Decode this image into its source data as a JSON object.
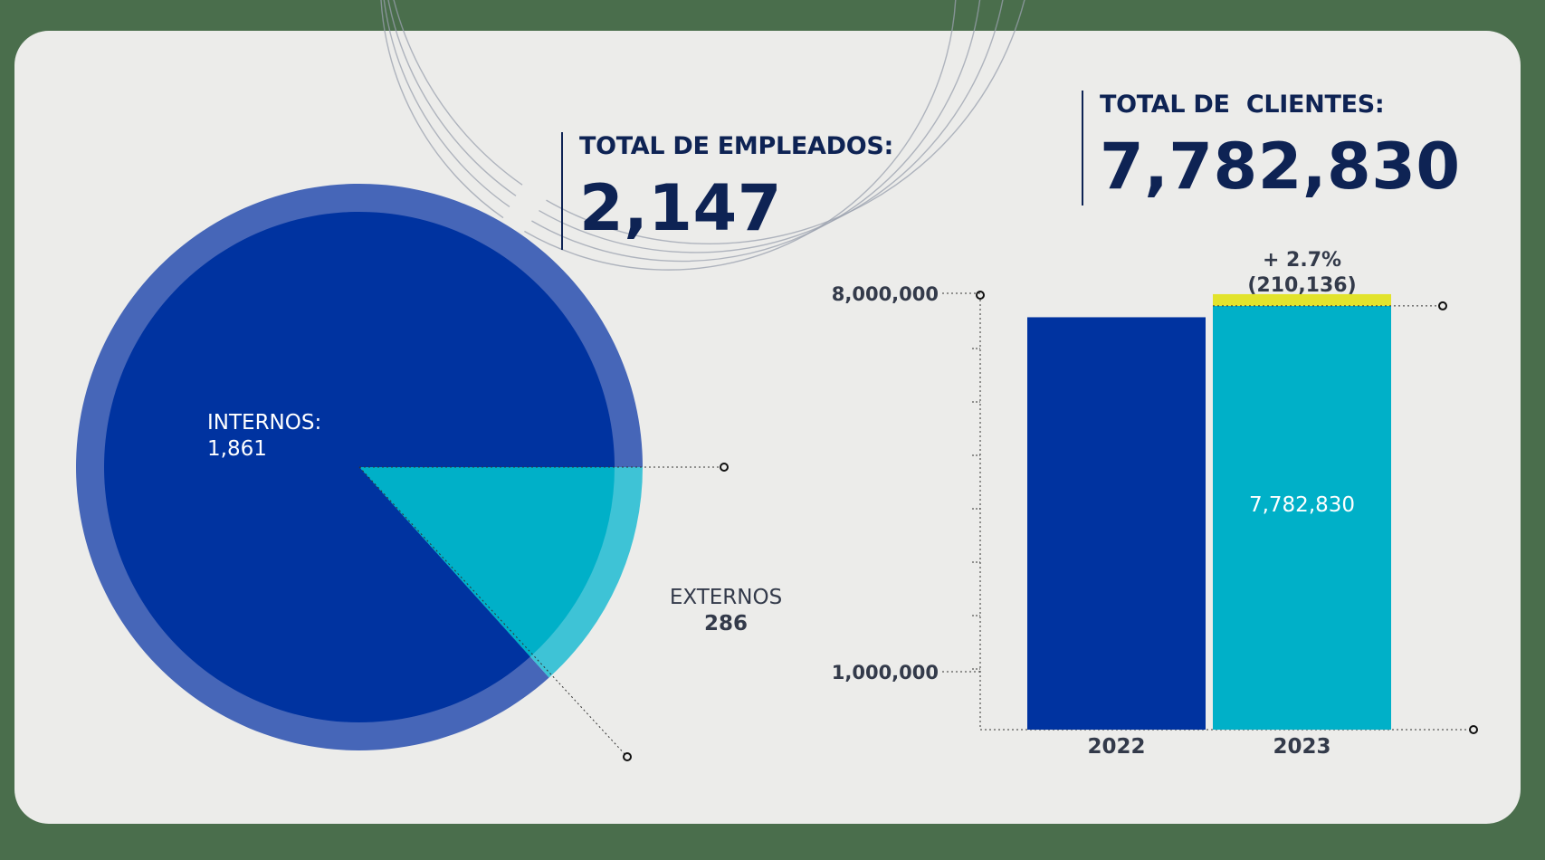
{
  "employees": {
    "label": "TOTAL DE EMPLEADOS:",
    "value": "2,147"
  },
  "clients": {
    "label": "TOTAL DE  CLIENTES:",
    "value": "7,782,830"
  },
  "colors": {
    "navy": "#0e2354",
    "internos": "#0033a0",
    "internos_ring": "#4666b8",
    "externos": "#00b0c8",
    "externos_ring": "#3ec3d6",
    "bar_2022": "#0033a0",
    "bar_2023": "#00b0c8",
    "growth": "#e2e32c",
    "guide": "#333333",
    "ring_line": "#9aa0ad"
  },
  "chart_data": [
    {
      "type": "pie",
      "slices": [
        {
          "label": "INTERNOS:",
          "value": 1861,
          "value_text": "1,861"
        },
        {
          "label": "EXTERNOS",
          "value": 286,
          "value_text": "286"
        }
      ]
    },
    {
      "type": "bar",
      "categories": [
        "2022",
        "2023"
      ],
      "values": [
        7572694,
        7782830
      ],
      "value_labels": [
        "",
        "7,782,830"
      ],
      "growth": {
        "value": 210136,
        "label_pct": "+ 2.7%",
        "label_abs": "(210,136)"
      },
      "y_ticks": [
        {
          "value": 1000000,
          "label": "1,000,000"
        },
        {
          "value": 8000000,
          "label": "8,000,000"
        }
      ],
      "ylim": [
        0,
        8000000
      ]
    }
  ]
}
